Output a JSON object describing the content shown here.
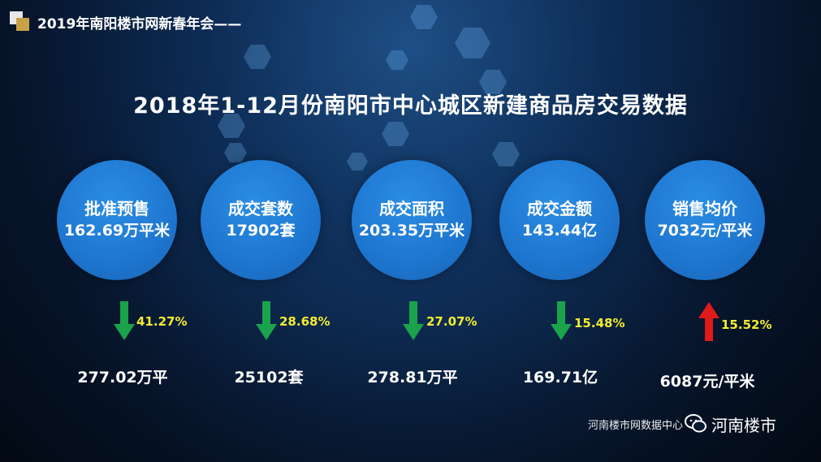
{
  "header": {
    "title": "2019年南阳楼市网新春年会——"
  },
  "main_title": "2018年1-12月份南阳市中心城区新建商品房交易数据",
  "stats": [
    {
      "label": "批准预售",
      "value": "162.69万平米",
      "change": "41.27%",
      "direction": "down",
      "previous": "277.02万平"
    },
    {
      "label": "成交套数",
      "value": "17902套",
      "change": "28.68%",
      "direction": "down",
      "previous": "25102套"
    },
    {
      "label": "成交面积",
      "value": "203.35万平米",
      "change": "27.07%",
      "direction": "down",
      "previous": "278.81万平"
    },
    {
      "label": "成交金额",
      "value": "143.44亿",
      "change": "15.48%",
      "direction": "down",
      "previous": "169.71亿"
    },
    {
      "label": "销售均价",
      "value": "7032元/平米",
      "change": "15.52%",
      "direction": "up",
      "previous": "6087元/平米"
    }
  ],
  "footer": {
    "source": "河南楼市网数据中心",
    "brand": "河南楼市"
  },
  "icons": {
    "down": "arrow-down-icon",
    "up": "arrow-up-icon",
    "wechat": "wechat-icon"
  },
  "colors": {
    "circle": "#1e76cf",
    "down_arrow": "#1aa34a",
    "up_arrow": "#e01a1a",
    "percent": "#f3ec2f"
  }
}
